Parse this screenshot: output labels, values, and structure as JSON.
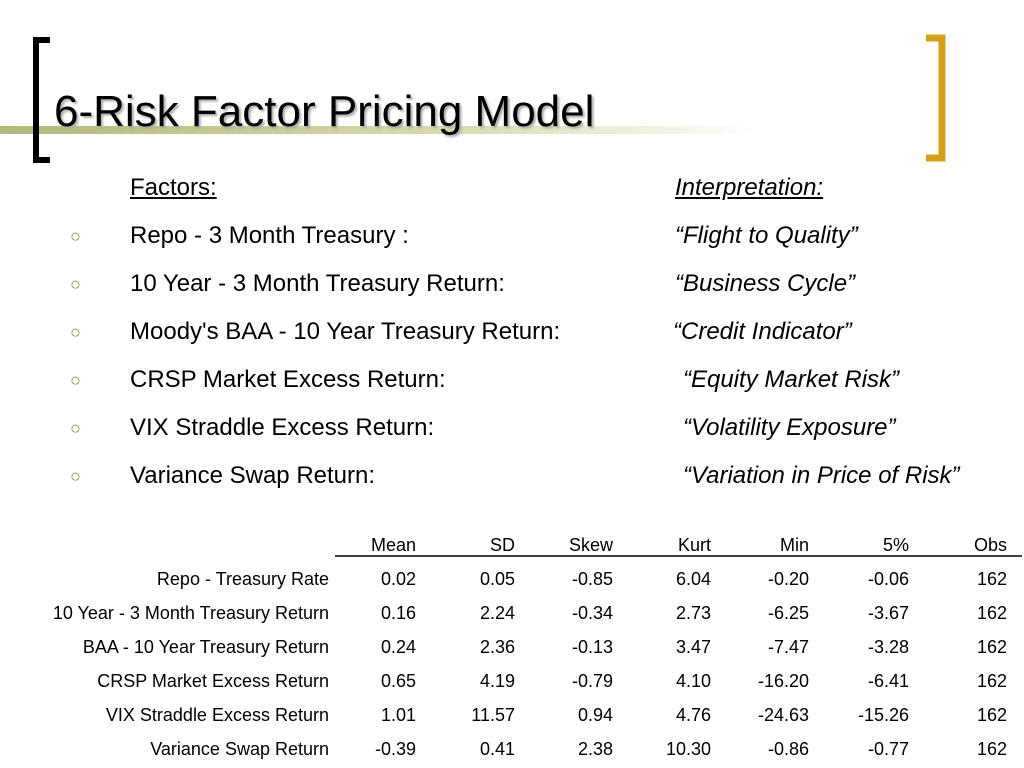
{
  "header": {
    "title": "6-Risk Factor Pricing Model"
  },
  "list": {
    "factors_heading": "Factors:",
    "interpretation_heading": "Interpretation:",
    "items": [
      {
        "factor": "Repo - 3 Month Treasury :",
        "interpretation": "“Flight to Quality”"
      },
      {
        "factor": "10 Year - 3 Month Treasury Return:",
        "interpretation": "“Business Cycle”"
      },
      {
        "factor": "Moody's BAA - 10 Year Treasury Return:",
        "interpretation": "“Credit Indicator”"
      },
      {
        "factor": "CRSP Market Excess Return:",
        "interpretation": "“Equity Market Risk”"
      },
      {
        "factor": "VIX Straddle Excess Return:",
        "interpretation": "“Volatility Exposure”"
      },
      {
        "factor": "Variance Swap Return:",
        "interpretation": "“Variation in Price of Risk”"
      }
    ]
  },
  "table": {
    "columns": [
      "Mean",
      "SD",
      "Skew",
      "Kurt",
      "Min",
      "5%",
      "Obs"
    ],
    "rows": [
      {
        "label": "Repo - Treasury Rate",
        "cells": [
          "0.02",
          "0.05",
          "-0.85",
          "6.04",
          "-0.20",
          "-0.06",
          "162"
        ]
      },
      {
        "label": "10 Year - 3 Month Treasury Return",
        "cells": [
          "0.16",
          "2.24",
          "-0.34",
          "2.73",
          "-6.25",
          "-3.67",
          "162"
        ]
      },
      {
        "label": "BAA - 10 Year Treasury Return",
        "cells": [
          "0.24",
          "2.36",
          "-0.13",
          "3.47",
          "-7.47",
          "-3.28",
          "162"
        ]
      },
      {
        "label": "CRSP Market Excess Return",
        "cells": [
          "0.65",
          "4.19",
          "-0.79",
          "4.10",
          "-16.20",
          "-6.41",
          "162"
        ]
      },
      {
        "label": "VIX Straddle Excess Return",
        "cells": [
          "1.01",
          "11.57",
          "0.94",
          "4.76",
          "-24.63",
          "-15.26",
          "162"
        ]
      },
      {
        "label": "Variance Swap Return",
        "cells": [
          "-0.39",
          "0.41",
          "2.38",
          "10.30",
          "-0.86",
          "-0.77",
          "162"
        ]
      }
    ]
  }
}
